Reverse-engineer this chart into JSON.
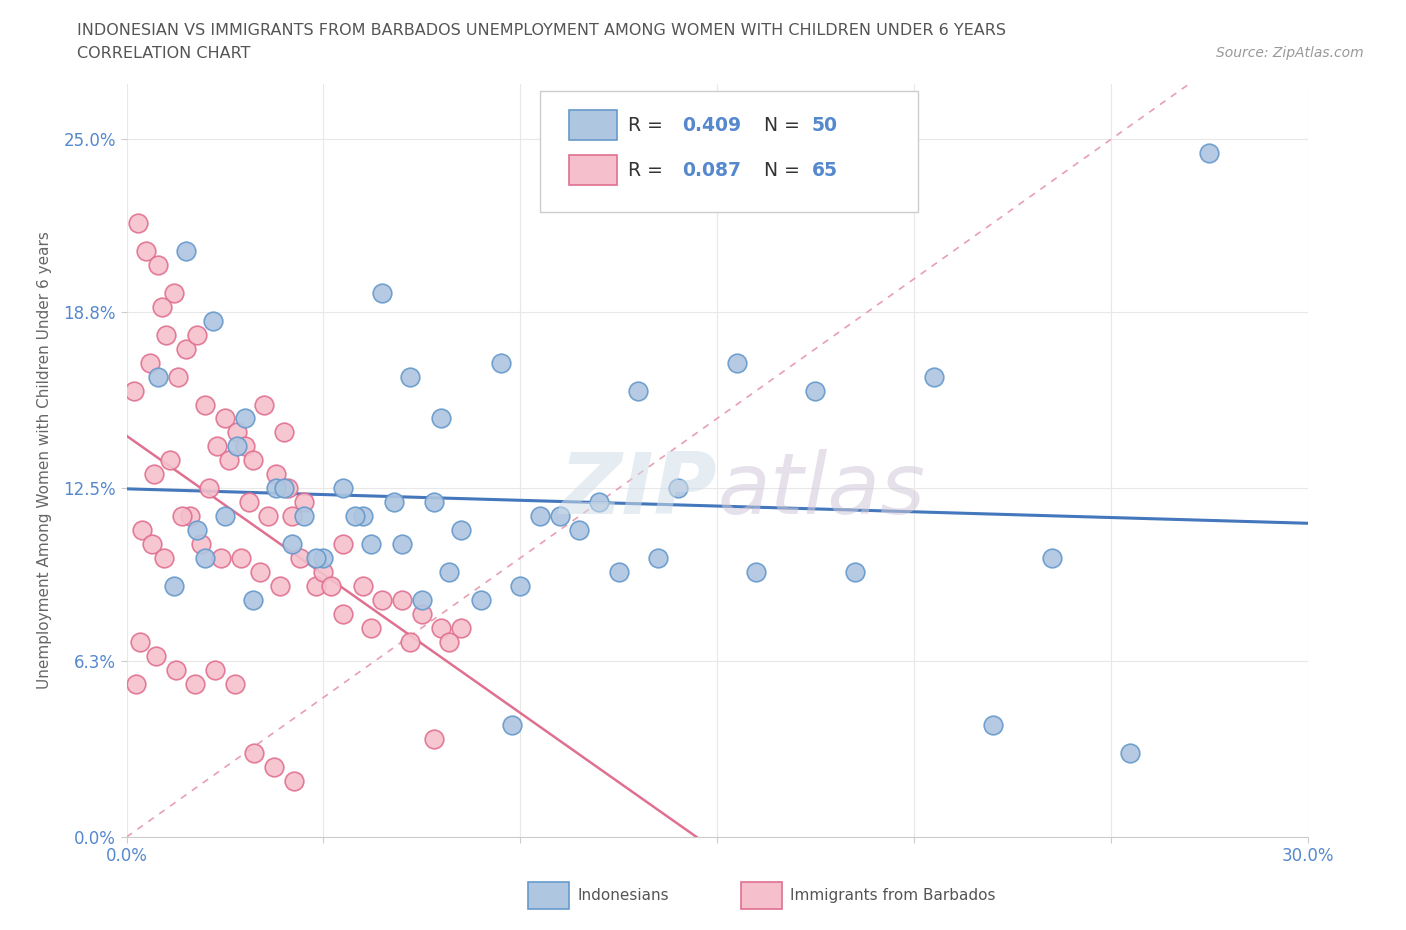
{
  "title_line1": "INDONESIAN VS IMMIGRANTS FROM BARBADOS UNEMPLOYMENT AMONG WOMEN WITH CHILDREN UNDER 6 YEARS",
  "title_line2": "CORRELATION CHART",
  "source_text": "Source: ZipAtlas.com",
  "ylabel": "Unemployment Among Women with Children Under 6 years",
  "legend_label1": "Indonesians",
  "legend_label2": "Immigrants from Barbados",
  "R1": 0.409,
  "N1": 50,
  "R2": 0.087,
  "N2": 65,
  "x_min": 0.0,
  "x_max": 30.0,
  "y_min": 0.0,
  "y_max": 27.0,
  "y_ticks": [
    0.0,
    6.3,
    12.5,
    18.8,
    25.0
  ],
  "y_tick_labels": [
    "0.0%",
    "6.3%",
    "12.5%",
    "18.8%",
    "25.0%"
  ],
  "x_tick_labels_show": [
    "0.0%",
    "30.0%"
  ],
  "blue_fill": "#aec6e0",
  "blue_edge": "#6699cc",
  "pink_fill": "#f5c0cc",
  "pink_edge": "#e07090",
  "blue_line": "#4477bb",
  "pink_line": "#e07090",
  "ref_line": "#e8a0b0",
  "tick_color": "#5588cc",
  "indonesian_x": [
    1.5,
    2.2,
    3.0,
    0.8,
    1.8,
    2.8,
    4.5,
    6.5,
    5.5,
    7.2,
    8.0,
    9.5,
    11.0,
    13.0,
    15.5,
    20.5,
    27.5,
    1.2,
    3.8,
    6.0,
    7.8,
    10.5,
    14.0,
    17.5,
    22.0,
    2.5,
    4.0,
    5.0,
    6.8,
    8.5,
    12.5,
    3.2,
    5.8,
    7.5,
    9.0,
    11.5,
    16.0,
    23.5,
    4.8,
    6.2,
    8.2,
    10.0,
    13.5,
    18.5,
    25.5,
    2.0,
    4.2,
    7.0,
    9.8,
    12.0
  ],
  "indonesian_y": [
    21.0,
    18.5,
    15.0,
    16.5,
    11.0,
    14.0,
    11.5,
    19.5,
    12.5,
    16.5,
    15.0,
    17.0,
    11.5,
    16.0,
    17.0,
    16.5,
    24.5,
    9.0,
    12.5,
    11.5,
    12.0,
    11.5,
    12.5,
    16.0,
    4.0,
    11.5,
    12.5,
    10.0,
    12.0,
    11.0,
    9.5,
    8.5,
    11.5,
    8.5,
    8.5,
    11.0,
    9.5,
    10.0,
    10.0,
    10.5,
    9.5,
    9.0,
    10.0,
    9.5,
    3.0,
    10.0,
    10.5,
    10.5,
    4.0,
    12.0
  ],
  "barbados_x": [
    0.3,
    0.5,
    0.8,
    1.0,
    1.2,
    1.5,
    0.2,
    0.6,
    0.9,
    1.3,
    1.8,
    2.0,
    2.3,
    2.5,
    2.8,
    3.0,
    3.2,
    3.5,
    3.8,
    4.0,
    0.4,
    0.7,
    1.1,
    1.6,
    2.1,
    2.6,
    3.1,
    3.6,
    4.1,
    4.5,
    0.35,
    0.65,
    0.95,
    1.4,
    1.9,
    2.4,
    2.9,
    3.4,
    3.9,
    4.4,
    4.8,
    5.0,
    5.5,
    6.0,
    6.5,
    7.0,
    7.5,
    8.0,
    8.5,
    4.2,
    5.2,
    6.2,
    7.2,
    8.2,
    0.25,
    0.75,
    1.25,
    1.75,
    2.25,
    2.75,
    3.25,
    3.75,
    4.25,
    5.5,
    7.8
  ],
  "barbados_y": [
    22.0,
    21.0,
    20.5,
    18.0,
    19.5,
    17.5,
    16.0,
    17.0,
    19.0,
    16.5,
    18.0,
    15.5,
    14.0,
    15.0,
    14.5,
    14.0,
    13.5,
    15.5,
    13.0,
    14.5,
    11.0,
    13.0,
    13.5,
    11.5,
    12.5,
    13.5,
    12.0,
    11.5,
    12.5,
    12.0,
    7.0,
    10.5,
    10.0,
    11.5,
    10.5,
    10.0,
    10.0,
    9.5,
    9.0,
    10.0,
    9.0,
    9.5,
    8.0,
    9.0,
    8.5,
    8.5,
    8.0,
    7.5,
    7.5,
    11.5,
    9.0,
    7.5,
    7.0,
    7.0,
    5.5,
    6.5,
    6.0,
    5.5,
    6.0,
    5.5,
    3.0,
    2.5,
    2.0,
    10.5,
    3.5
  ]
}
